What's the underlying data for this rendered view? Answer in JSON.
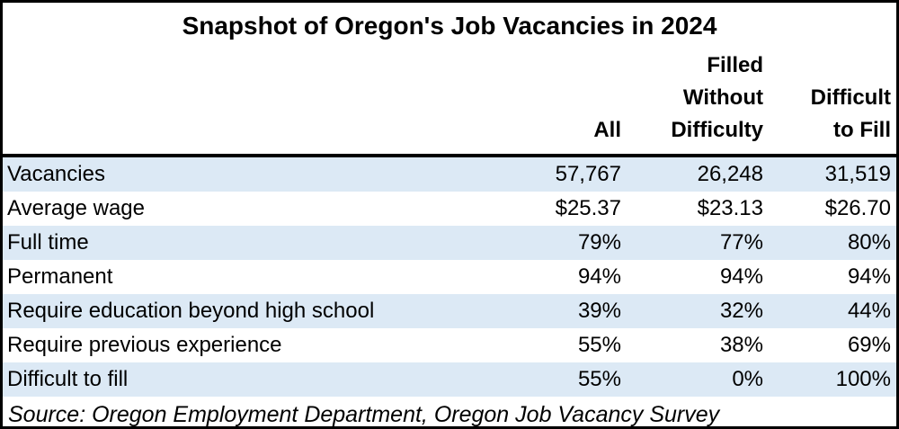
{
  "table": {
    "title": "Snapshot of Oregon's Job Vacancies in 2024",
    "columns": {
      "label": "",
      "all": "All",
      "filled": "Filled\nWithout\nDifficulty",
      "difficult": "Difficult\nto Fill"
    },
    "rows": [
      {
        "label": "Vacancies",
        "all": "57,767",
        "filled": "26,248",
        "difficult": "31,519"
      },
      {
        "label": "Average wage",
        "all": "$25.37",
        "filled": "$23.13",
        "difficult": "$26.70"
      },
      {
        "label": "Full time",
        "all": "79%",
        "filled": "77%",
        "difficult": "80%"
      },
      {
        "label": "Permanent",
        "all": "94%",
        "filled": "94%",
        "difficult": "94%"
      },
      {
        "label": "Require education beyond high school",
        "all": "39%",
        "filled": "32%",
        "difficult": "44%"
      },
      {
        "label": "Require previous experience",
        "all": "55%",
        "filled": "38%",
        "difficult": "69%"
      },
      {
        "label": "Difficult to fill",
        "all": "55%",
        "filled": "0%",
        "difficult": "100%"
      }
    ],
    "source": "Source: Oregon Employment Department, Oregon Job Vacancy Survey",
    "colors": {
      "stripe": "#dce9f5",
      "border": "#000000",
      "background": "#ffffff",
      "text": "#000000"
    }
  },
  "chart_data": {
    "type": "table",
    "title": "Snapshot of Oregon's Job Vacancies in 2024",
    "columns": [
      "All",
      "Filled Without Difficulty",
      "Difficult to Fill"
    ],
    "rows": [
      {
        "label": "Vacancies",
        "values": [
          57767,
          26248,
          31519
        ]
      },
      {
        "label": "Average wage",
        "values": [
          "$25.37",
          "$23.13",
          "$26.70"
        ]
      },
      {
        "label": "Full time",
        "values": [
          "79%",
          "77%",
          "80%"
        ]
      },
      {
        "label": "Permanent",
        "values": [
          "94%",
          "94%",
          "94%"
        ]
      },
      {
        "label": "Require education beyond high school",
        "values": [
          "39%",
          "32%",
          "44%"
        ]
      },
      {
        "label": "Require previous experience",
        "values": [
          "55%",
          "38%",
          "69%"
        ]
      },
      {
        "label": "Difficult to fill",
        "values": [
          "55%",
          "0%",
          "100%"
        ]
      }
    ],
    "source": "Source: Oregon Employment Department, Oregon Job Vacancy Survey",
    "layout": {
      "stripe_rows": "odd",
      "header_align": "right",
      "values_align": "right",
      "grid": "off"
    }
  }
}
